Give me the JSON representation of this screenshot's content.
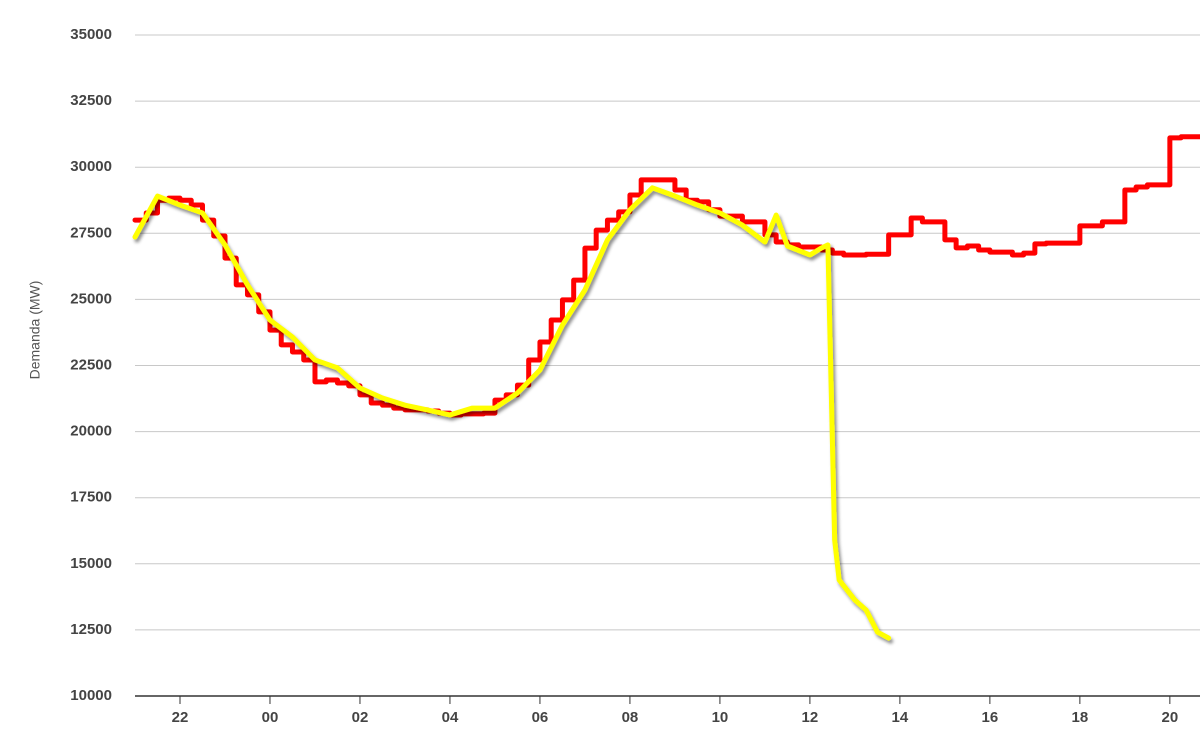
{
  "chart_data": {
    "type": "line",
    "y_label": "Demanda (MW)",
    "xlim": [
      0,
      23.67
    ],
    "xticks": [
      {
        "value": 1,
        "label": "22"
      },
      {
        "value": 3,
        "label": "00"
      },
      {
        "value": 5,
        "label": "02"
      },
      {
        "value": 7,
        "label": "04"
      },
      {
        "value": 9,
        "label": "06"
      },
      {
        "value": 11,
        "label": "08"
      },
      {
        "value": 13,
        "label": "10"
      },
      {
        "value": 15,
        "label": "12"
      },
      {
        "value": 17,
        "label": "14"
      },
      {
        "value": 19,
        "label": "16"
      },
      {
        "value": 21,
        "label": "18"
      },
      {
        "value": 23,
        "label": "20"
      }
    ],
    "ylim": [
      10000,
      35000
    ],
    "yticks": [
      10000,
      12500,
      15000,
      17500,
      20000,
      22500,
      25000,
      27500,
      30000,
      32500,
      35000
    ],
    "grid": true,
    "series": [
      {
        "color": "#ff0000",
        "step": true,
        "x": [
          0,
          0.25,
          0.5,
          0.75,
          1,
          1.25,
          1.5,
          1.75,
          2,
          2.25,
          2.5,
          2.75,
          3,
          3.25,
          3.5,
          3.75,
          4,
          4.25,
          4.5,
          4.75,
          5,
          5.25,
          5.5,
          5.75,
          6,
          6.25,
          6.5,
          6.75,
          7,
          7.25,
          7.5,
          7.75,
          8,
          8.25,
          8.5,
          8.75,
          9,
          9.25,
          9.5,
          9.75,
          10,
          10.25,
          10.5,
          10.75,
          11,
          11.25,
          11.5,
          11.75,
          12,
          12.25,
          12.5,
          12.75,
          13,
          13.25,
          13.5,
          13.75,
          14,
          14.25,
          14.5,
          14.75,
          15,
          15.25,
          15.5,
          15.75,
          16,
          16.25,
          16.5,
          16.75,
          17,
          17.25,
          17.5,
          17.75,
          18,
          18.25,
          18.5,
          18.75,
          19,
          19.25,
          19.5,
          19.75,
          20,
          20.25,
          20.5,
          20.75,
          21,
          21.25,
          21.5,
          21.75,
          22,
          22.25,
          22.5,
          22.75,
          23,
          23.25,
          23.5
        ],
        "values": [
          28000,
          28270,
          28750,
          28830,
          28750,
          28570,
          28000,
          27400,
          26560,
          25550,
          25170,
          24530,
          23840,
          23280,
          23010,
          22710,
          21880,
          21950,
          21840,
          21730,
          21390,
          21080,
          21000,
          20890,
          20820,
          20820,
          20780,
          20700,
          20630,
          20670,
          20670,
          20700,
          21190,
          21390,
          21760,
          22710,
          23390,
          24220,
          24980,
          25730,
          26940,
          27620,
          28000,
          28310,
          28950,
          29520,
          29520,
          29520,
          29140,
          28750,
          28690,
          28390,
          28150,
          28150,
          27930,
          27930,
          27440,
          27170,
          27060,
          26980,
          26980,
          26870,
          26750,
          26680,
          26680,
          26710,
          26710,
          27440,
          27440,
          28080,
          27930,
          27930,
          27250,
          26950,
          27020,
          26870,
          26790,
          26790,
          26680,
          26750,
          27100,
          27130,
          27130,
          27130,
          27780,
          27780,
          27930,
          27930,
          29140,
          29250,
          29330,
          29330,
          31110,
          31150,
          31150
        ]
      },
      {
        "color": "#ffff00",
        "step": false,
        "x": [
          0,
          0.5,
          1,
          1.5,
          2,
          2.5,
          3,
          3.5,
          4,
          4.5,
          5,
          5.5,
          6,
          6.5,
          7,
          7.5,
          8,
          8.5,
          9,
          9.5,
          10,
          10.5,
          11,
          11.5,
          12,
          12.5,
          13,
          13.5,
          14,
          14.25,
          14.5,
          15,
          15.25,
          15.4,
          15.55,
          15.65,
          16,
          16.25,
          16.5,
          16.75
        ],
        "values": [
          27360,
          28910,
          28570,
          28270,
          27060,
          25550,
          24220,
          23580,
          22710,
          22410,
          21650,
          21270,
          21000,
          20820,
          20630,
          20890,
          20890,
          21460,
          22330,
          24030,
          25360,
          27250,
          28390,
          29220,
          28910,
          28570,
          28270,
          27810,
          27170,
          28190,
          27020,
          26680,
          26940,
          27060,
          15900,
          14390,
          13630,
          13250,
          12420,
          12190
        ]
      }
    ]
  }
}
